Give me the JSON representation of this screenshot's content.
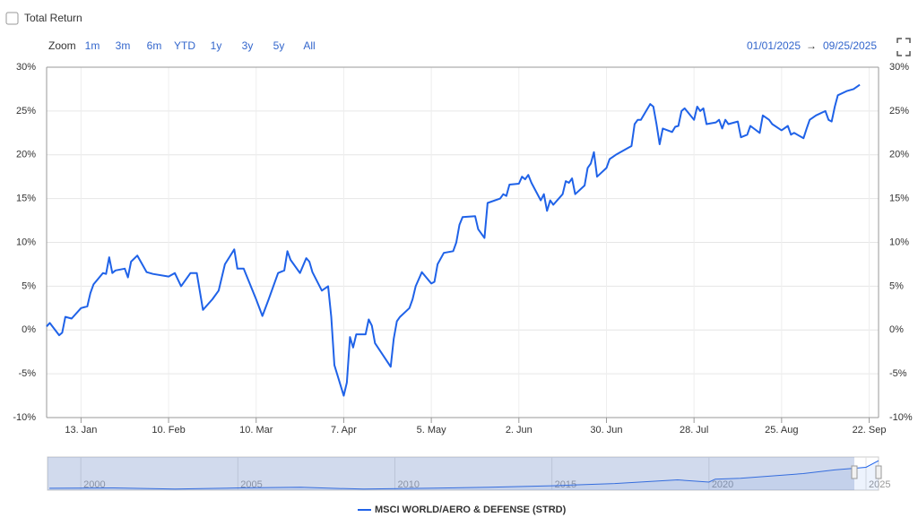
{
  "ui": {
    "checkbox_label": "Total Return",
    "zoom_label": "Zoom",
    "zoom_buttons": [
      "1m",
      "3m",
      "6m",
      "YTD",
      "1y",
      "3y",
      "5y",
      "All"
    ],
    "range_from": "01/01/2025",
    "range_separator": "→",
    "range_to": "09/25/2025"
  },
  "chart_data": {
    "type": "line",
    "grid": true,
    "legend": "bottom",
    "x": [
      "2025-01-02",
      "2025-01-03",
      "2025-01-06",
      "2025-01-07",
      "2025-01-08",
      "2025-01-10",
      "2025-01-13",
      "2025-01-15",
      "2025-01-16",
      "2025-01-17",
      "2025-01-20",
      "2025-01-21",
      "2025-01-22",
      "2025-01-23",
      "2025-01-24",
      "2025-01-27",
      "2025-01-28",
      "2025-01-29",
      "2025-01-31",
      "2025-02-03",
      "2025-02-05",
      "2025-02-10",
      "2025-02-12",
      "2025-02-14",
      "2025-02-17",
      "2025-02-19",
      "2025-02-21",
      "2025-02-24",
      "2025-02-26",
      "2025-02-28",
      "2025-03-03",
      "2025-03-04",
      "2025-03-06",
      "2025-03-10",
      "2025-03-12",
      "2025-03-14",
      "2025-03-17",
      "2025-03-19",
      "2025-03-20",
      "2025-03-21",
      "2025-03-24",
      "2025-03-26",
      "2025-03-27",
      "2025-03-28",
      "2025-03-31",
      "2025-04-02",
      "2025-04-03",
      "2025-04-04",
      "2025-04-07",
      "2025-04-08",
      "2025-04-09",
      "2025-04-10",
      "2025-04-11",
      "2025-04-14",
      "2025-04-15",
      "2025-04-16",
      "2025-04-17",
      "2025-04-22",
      "2025-04-23",
      "2025-04-24",
      "2025-04-25",
      "2025-04-28",
      "2025-04-29",
      "2025-04-30",
      "2025-05-02",
      "2025-05-05",
      "2025-05-06",
      "2025-05-07",
      "2025-05-09",
      "2025-05-12",
      "2025-05-13",
      "2025-05-14",
      "2025-05-15",
      "2025-05-19",
      "2025-05-20",
      "2025-05-22",
      "2025-05-23",
      "2025-05-27",
      "2025-05-28",
      "2025-05-29",
      "2025-05-30",
      "2025-06-02",
      "2025-06-03",
      "2025-06-04",
      "2025-06-05",
      "2025-06-06",
      "2025-06-09",
      "2025-06-10",
      "2025-06-11",
      "2025-06-12",
      "2025-06-13",
      "2025-06-16",
      "2025-06-17",
      "2025-06-18",
      "2025-06-19",
      "2025-06-20",
      "2025-06-23",
      "2025-06-24",
      "2025-06-25",
      "2025-06-26",
      "2025-06-27",
      "2025-06-30",
      "2025-07-01",
      "2025-07-03",
      "2025-07-07",
      "2025-07-08",
      "2025-07-09",
      "2025-07-10",
      "2025-07-11",
      "2025-07-14",
      "2025-07-15",
      "2025-07-16",
      "2025-07-17",
      "2025-07-18",
      "2025-07-21",
      "2025-07-22",
      "2025-07-23",
      "2025-07-24",
      "2025-07-25",
      "2025-07-28",
      "2025-07-29",
      "2025-07-30",
      "2025-07-31",
      "2025-08-01",
      "2025-08-04",
      "2025-08-05",
      "2025-08-06",
      "2025-08-07",
      "2025-08-08",
      "2025-08-11",
      "2025-08-12",
      "2025-08-14",
      "2025-08-15",
      "2025-08-18",
      "2025-08-19",
      "2025-08-21",
      "2025-08-22",
      "2025-08-25",
      "2025-08-27",
      "2025-08-28",
      "2025-08-29",
      "2025-09-01",
      "2025-09-02",
      "2025-09-03",
      "2025-09-05",
      "2025-09-08",
      "2025-09-09",
      "2025-09-10",
      "2025-09-11",
      "2025-09-12",
      "2025-09-15",
      "2025-09-17",
      "2025-09-19"
    ],
    "series": [
      {
        "name": "MSCI WORLD/AERO & DEFENSE (STRD)",
        "color": "#1f62e8",
        "values": [
          0.4,
          0.8,
          -0.6,
          -0.3,
          1.5,
          1.3,
          2.5,
          2.7,
          4.2,
          5.2,
          6.5,
          6.4,
          8.3,
          6.5,
          6.8,
          7.0,
          6.0,
          7.8,
          8.5,
          6.6,
          6.4,
          6.1,
          6.5,
          5.0,
          6.5,
          6.5,
          2.3,
          3.5,
          4.5,
          7.5,
          9.2,
          7.0,
          7.0,
          3.5,
          1.6,
          3.5,
          6.5,
          6.8,
          9.0,
          8.0,
          6.5,
          8.2,
          7.8,
          6.6,
          4.5,
          5.0,
          1.5,
          -4.0,
          -7.5,
          -6.0,
          -0.8,
          -2.0,
          -0.5,
          -0.5,
          1.2,
          0.5,
          -1.5,
          -4.2,
          -1.0,
          1.0,
          1.5,
          2.5,
          3.5,
          5.0,
          6.6,
          5.3,
          5.5,
          7.5,
          8.8,
          9.0,
          10.0,
          12.0,
          12.9,
          13.0,
          11.5,
          10.5,
          14.5,
          15.0,
          15.5,
          15.3,
          16.6,
          16.7,
          17.5,
          17.2,
          17.7,
          16.8,
          14.8,
          15.5,
          13.6,
          14.8,
          14.3,
          15.5,
          17.0,
          16.8,
          17.3,
          15.5,
          16.5,
          18.5,
          19.0,
          20.3,
          17.5,
          18.5,
          19.5,
          20.0,
          20.8,
          21.0,
          23.5,
          24.0,
          24.0,
          25.8,
          25.5,
          23.5,
          21.2,
          23.0,
          22.6,
          23.2,
          23.3,
          25.0,
          25.3,
          24.0,
          25.5,
          25.0,
          25.3,
          23.5,
          23.7,
          24.0,
          23.0,
          24.0,
          23.5,
          23.8,
          22.0,
          22.3,
          23.3,
          22.5,
          24.5,
          24.0,
          23.5,
          22.8,
          23.3,
          22.3,
          22.5,
          21.9,
          23.0,
          24.0,
          24.5,
          25.0,
          24.0,
          23.8,
          25.5,
          26.8,
          27.3,
          27.5,
          28.0
        ]
      }
    ],
    "xlim": [
      "2025-01-02",
      "2025-09-25"
    ],
    "xticks": [
      {
        "value": "2025-01-13",
        "label": "13. Jan"
      },
      {
        "value": "2025-02-10",
        "label": "10. Feb"
      },
      {
        "value": "2025-03-10",
        "label": "10. Mar"
      },
      {
        "value": "2025-04-07",
        "label": "7. Apr"
      },
      {
        "value": "2025-05-05",
        "label": "5. May"
      },
      {
        "value": "2025-06-02",
        "label": "2. Jun"
      },
      {
        "value": "2025-06-30",
        "label": "30. Jun"
      },
      {
        "value": "2025-07-28",
        "label": "28. Jul"
      },
      {
        "value": "2025-08-25",
        "label": "25. Aug"
      },
      {
        "value": "2025-09-22",
        "label": "22. Sep"
      }
    ],
    "ylim": [
      -10,
      30
    ],
    "yticks": [
      {
        "value": -10,
        "label": "-10%"
      },
      {
        "value": -5,
        "label": "-5%"
      },
      {
        "value": 0,
        "label": "0%"
      },
      {
        "value": 5,
        "label": "5%"
      },
      {
        "value": 10,
        "label": "10%"
      },
      {
        "value": 15,
        "label": "15%"
      },
      {
        "value": 20,
        "label": "20%"
      },
      {
        "value": 25,
        "label": "25%"
      },
      {
        "value": 30,
        "label": "30%"
      }
    ],
    "y2lim": [
      -10,
      30
    ],
    "y2ticks": [
      {
        "value": -10,
        "label": "-10%"
      },
      {
        "value": -5,
        "label": "-5%"
      },
      {
        "value": 0,
        "label": "0%"
      },
      {
        "value": 5,
        "label": "5%"
      },
      {
        "value": 10,
        "label": "10%"
      },
      {
        "value": 15,
        "label": "15%"
      },
      {
        "value": 20,
        "label": "20%"
      },
      {
        "value": 25,
        "label": "25%"
      },
      {
        "value": 30,
        "label": "30%"
      }
    ],
    "navigator": {
      "x": [
        1999,
        2001,
        2003,
        2005,
        2007,
        2008,
        2009,
        2011,
        2013,
        2015,
        2017,
        2019,
        2020,
        2020.2,
        2021,
        2023,
        2024,
        2025,
        2025.4
      ],
      "values": [
        5,
        6,
        3,
        6,
        8,
        5,
        3,
        5,
        8,
        12,
        18,
        28,
        22,
        30,
        32,
        45,
        55,
        62,
        80
      ],
      "xlim": [
        1998.94,
        2025.4
      ],
      "ylim": [
        0,
        90
      ],
      "xticks": [
        2000,
        2005,
        2010,
        2015,
        2020,
        2025
      ]
    }
  }
}
